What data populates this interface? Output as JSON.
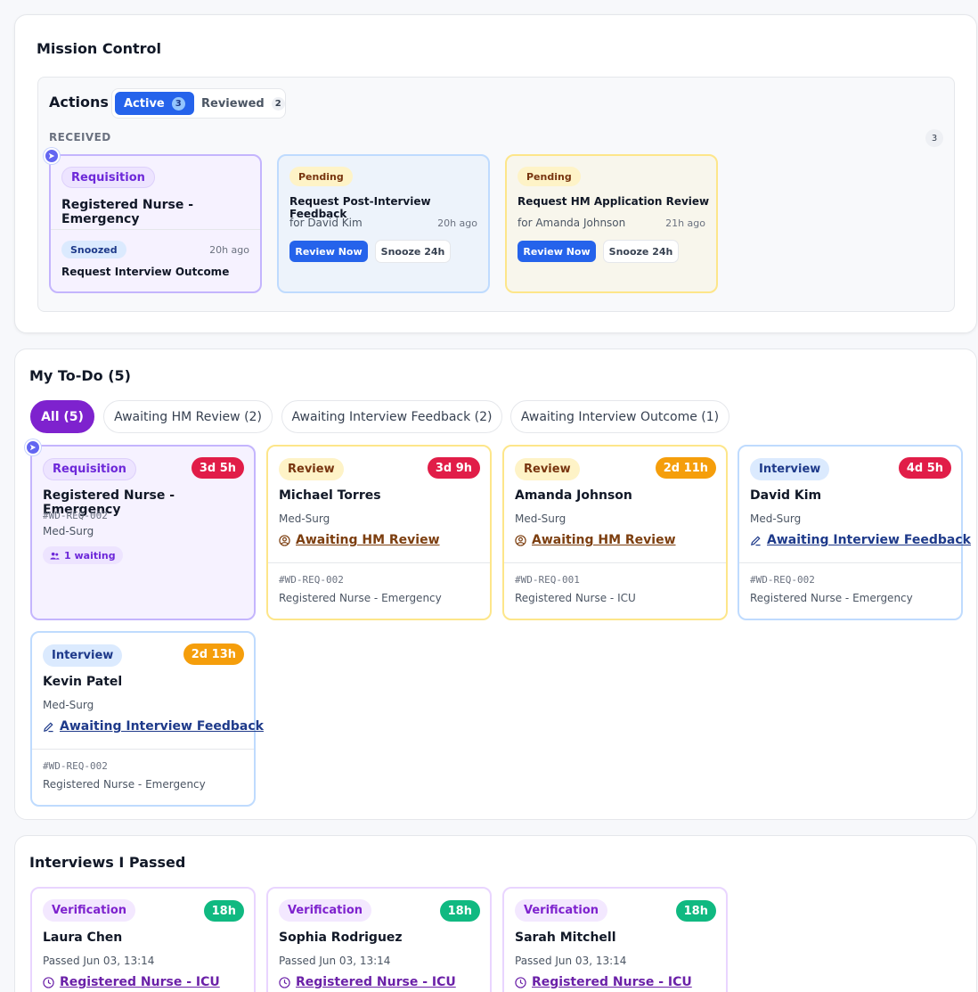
{
  "mission_control": {
    "title": "Mission Control",
    "actions": {
      "title": "Actions",
      "tabs": [
        {
          "label": "Active",
          "count": "3"
        },
        {
          "label": "Reviewed",
          "count": "2"
        }
      ],
      "received_label": "RECEIVED",
      "received_count": "3",
      "cards": [
        {
          "tag": "Requisition",
          "title": "Registered Nurse - Emergency",
          "status": "Snoozed",
          "time": "20h ago",
          "task": "Request Interview Outcome"
        },
        {
          "tag": "Pending",
          "title": "Request Post-Interview Feedback",
          "for": "for David Kim",
          "time": "20h ago",
          "primary": "Review Now",
          "secondary": "Snooze 24h"
        },
        {
          "tag": "Pending",
          "title": "Request HM Application Review",
          "for": "for Amanda Johnson",
          "time": "21h ago",
          "primary": "Review Now",
          "secondary": "Snooze 24h"
        }
      ]
    }
  },
  "todo": {
    "title": "My To-Do (5)",
    "filters": [
      "All (5)",
      "Awaiting HM Review (2)",
      "Awaiting Interview Feedback (2)",
      "Awaiting Interview Outcome (1)"
    ],
    "cards": [
      {
        "tag": "Requisition",
        "timer": "3d 5h",
        "title": "Registered Nurse - Emergency",
        "id": "#WD-REQ-002",
        "dept": "Med-Surg",
        "waiting": "1 waiting"
      },
      {
        "tag": "Review",
        "timer": "3d 9h",
        "title": "Michael Torres",
        "dept": "Med-Surg",
        "link": "Awaiting HM Review",
        "id": "#WD-REQ-002",
        "role": "Registered Nurse - Emergency"
      },
      {
        "tag": "Review",
        "timer": "2d 11h",
        "title": "Amanda Johnson",
        "dept": "Med-Surg",
        "link": "Awaiting HM Review",
        "id": "#WD-REQ-001",
        "role": "Registered Nurse - ICU"
      },
      {
        "tag": "Interview",
        "timer": "4d 5h",
        "title": "David Kim",
        "dept": "Med-Surg",
        "link": "Awaiting Interview Feedback",
        "id": "#WD-REQ-002",
        "role": "Registered Nurse - Emergency"
      },
      {
        "tag": "Interview",
        "timer": "2d 13h",
        "title": "Kevin Patel",
        "dept": "Med-Surg",
        "link": "Awaiting Interview Feedback",
        "id": "#WD-REQ-002",
        "role": "Registered Nurse - Emergency"
      }
    ]
  },
  "passed": {
    "title": "Interviews I Passed",
    "cards": [
      {
        "tag": "Verification",
        "timer": "18h",
        "title": "Laura Chen",
        "passed": "Passed Jun 03, 13:14",
        "link": "Registered Nurse - ICU"
      },
      {
        "tag": "Verification",
        "timer": "18h",
        "title": "Sophia Rodriguez",
        "passed": "Passed Jun 03, 13:14",
        "link": "Registered Nurse - ICU"
      },
      {
        "tag": "Verification",
        "timer": "18h",
        "title": "Sarah Mitchell",
        "passed": "Passed Jun 03, 13:14",
        "link": "Registered Nurse - ICU"
      }
    ]
  }
}
